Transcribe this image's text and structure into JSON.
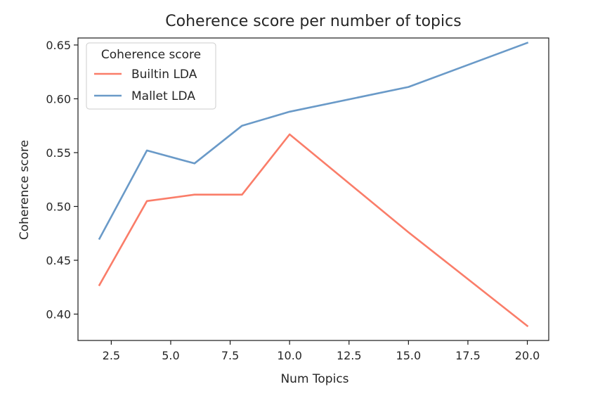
{
  "chart_data": {
    "type": "line",
    "title": "Coherence score per number of topics",
    "xlabel": "Num Topics",
    "ylabel": "Coherence score",
    "xlim": [
      1.1,
      20.9
    ],
    "ylim": [
      0.3755,
      0.6565
    ],
    "x_ticks": [
      2.5,
      5.0,
      7.5,
      10.0,
      12.5,
      15.0,
      17.5,
      20.0
    ],
    "x_tick_labels": [
      "2.5",
      "5.0",
      "7.5",
      "10.0",
      "12.5",
      "15.0",
      "17.5",
      "20.0"
    ],
    "y_ticks": [
      0.4,
      0.45,
      0.5,
      0.55,
      0.6,
      0.65
    ],
    "y_tick_labels": [
      "0.40",
      "0.45",
      "0.50",
      "0.55",
      "0.60",
      "0.65"
    ],
    "grid": false,
    "legend": {
      "title": "Coherence score",
      "placement": "top-left"
    },
    "series": [
      {
        "name": "Builtin LDA",
        "color": "#fa7d69",
        "x": [
          2,
          4,
          6,
          8,
          10,
          15,
          20
        ],
        "y": [
          0.427,
          0.505,
          0.511,
          0.511,
          0.567,
          0.476,
          0.389
        ]
      },
      {
        "name": "Mallet LDA",
        "color": "#6a9ac8",
        "x": [
          2,
          4,
          6,
          8,
          10,
          15,
          20
        ],
        "y": [
          0.47,
          0.552,
          0.54,
          0.575,
          0.588,
          0.611,
          0.652
        ]
      }
    ]
  }
}
